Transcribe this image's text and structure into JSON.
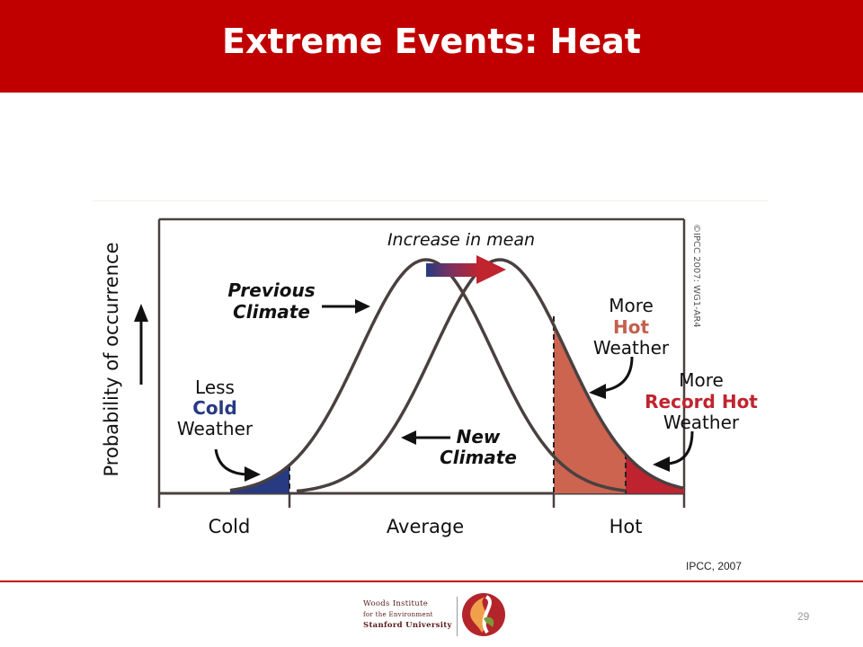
{
  "slide": {
    "title": "Extreme Events: Heat",
    "citation": "IPCC, 2007",
    "page_number": "29"
  },
  "diagram": {
    "y_axis_label": "Probability of occurrence",
    "x_labels": {
      "cold": "Cold",
      "average": "Average",
      "hot": "Hot"
    },
    "increase_label": "Increase in mean",
    "previous_climate": {
      "line1": "Previous",
      "line2": "Climate"
    },
    "new_climate": {
      "line1": "New",
      "line2": "Climate"
    },
    "less_cold": {
      "line1": "Less",
      "line2": "Cold",
      "line3": "Weather"
    },
    "more_hot": {
      "line1": "More",
      "line2": "Hot",
      "line3": "Weather"
    },
    "more_record_hot": {
      "line1": "More",
      "line2": "Record Hot",
      "line3": "Weather"
    },
    "copyright": "©IPCC 2007: WG1-AR4",
    "colors": {
      "curve": "#4a4040",
      "cold_fill": "#273a82",
      "hot_fill": "#cd6450",
      "record_fill": "#bf2330",
      "cold_text": "#273a82",
      "hot_text": "#c4604f",
      "record_text": "#c0242f"
    }
  },
  "footer": {
    "logo_line1": "Woods Institute",
    "logo_line2": "for the Environment",
    "logo_line3": "Stanford University"
  }
}
